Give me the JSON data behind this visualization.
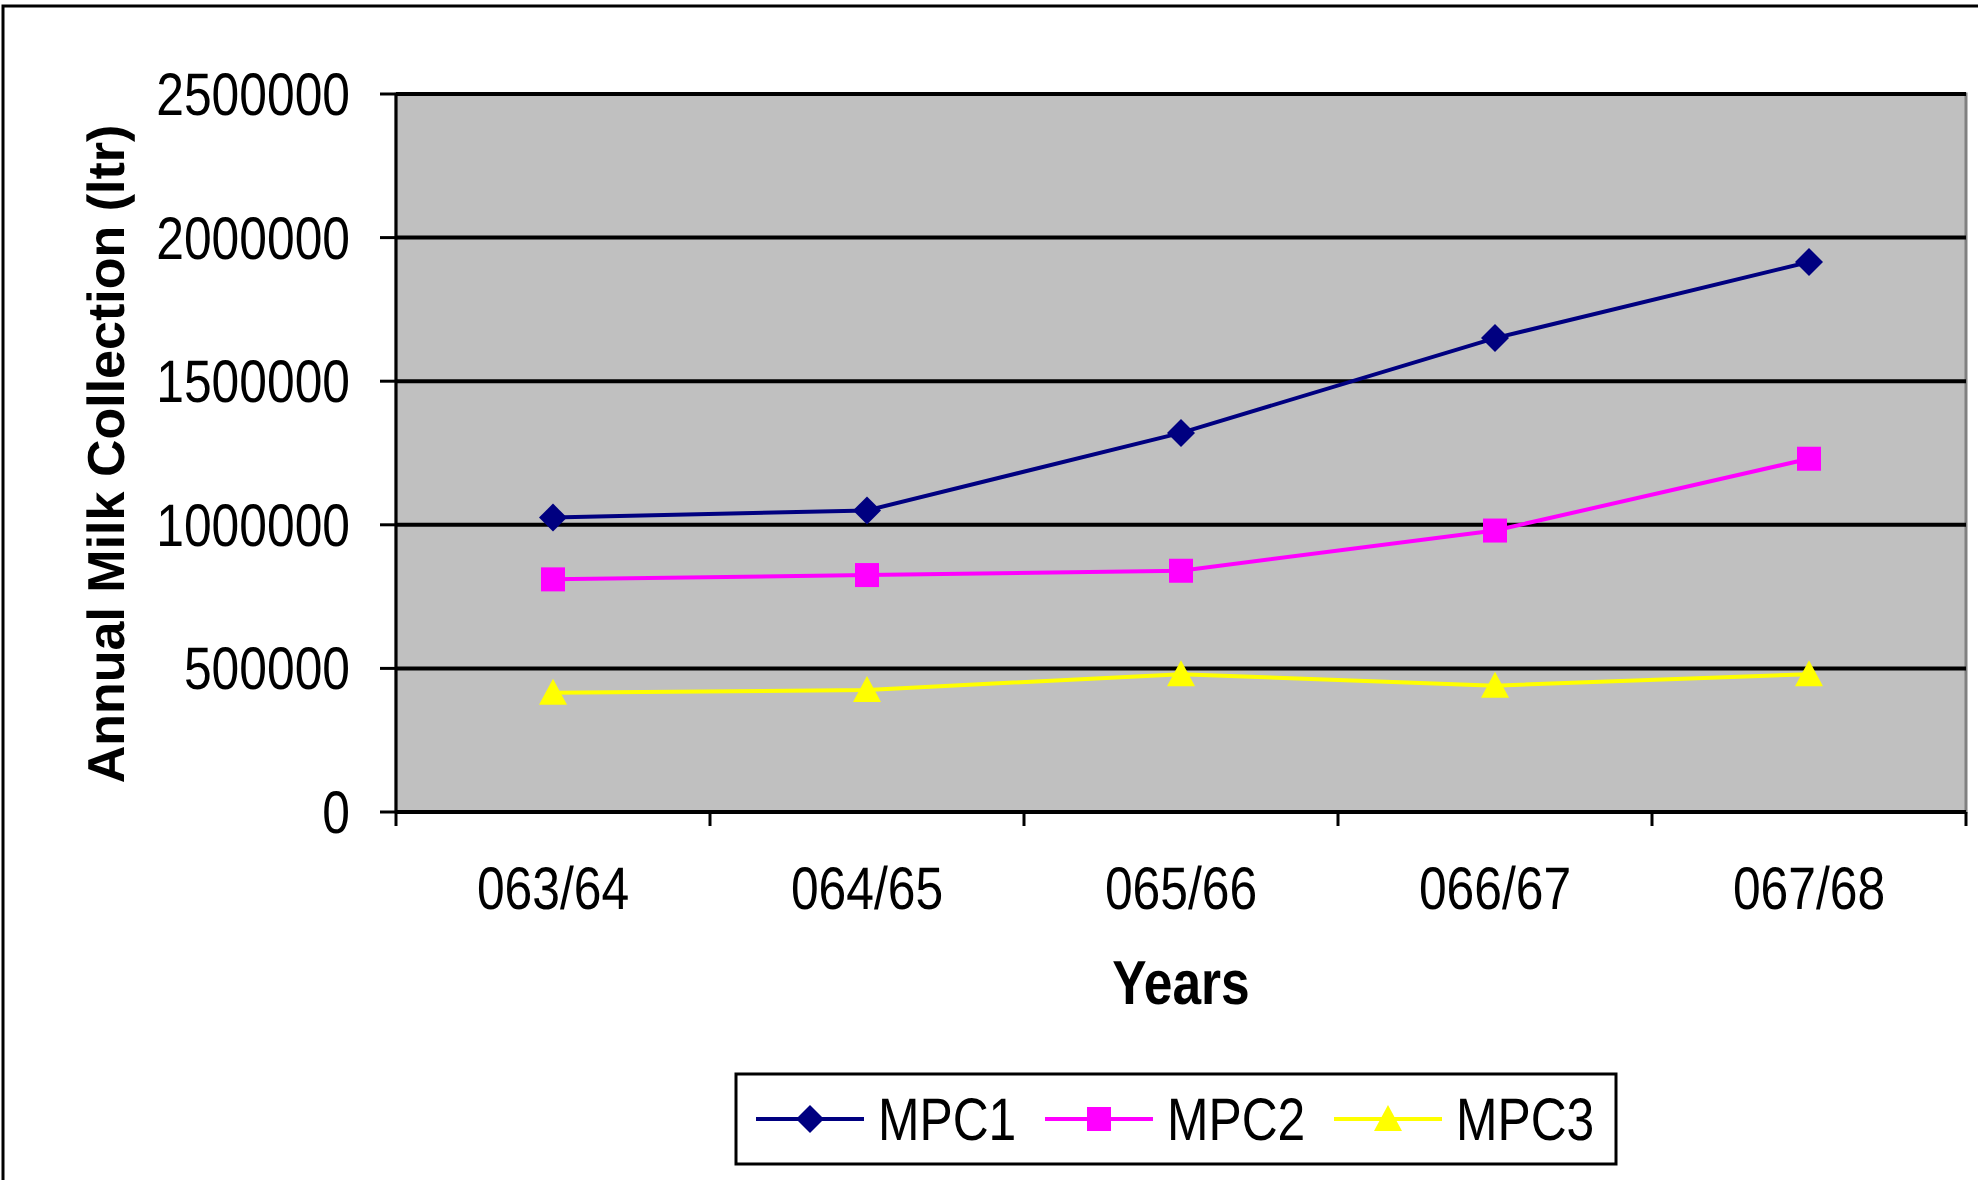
{
  "chart_data": {
    "type": "line",
    "xlabel": "Years",
    "ylabel": "Annual Milk Collection (ltr)",
    "categories": [
      "063/64",
      "064/65",
      "065/66",
      "066/67",
      "067/68"
    ],
    "series": [
      {
        "name": "MPC1",
        "color": "#000080",
        "marker": "diamond",
        "values": [
          1025000,
          1050000,
          1320000,
          1650000,
          1915000
        ]
      },
      {
        "name": "MPC2",
        "color": "#ff00ff",
        "marker": "square",
        "values": [
          810000,
          825000,
          840000,
          980000,
          1230000
        ]
      },
      {
        "name": "MPC3",
        "color": "#ffff00",
        "marker": "triangle",
        "values": [
          415000,
          425000,
          480000,
          440000,
          480000
        ]
      }
    ],
    "ylim": [
      0,
      2500000
    ],
    "yticks": [
      0,
      500000,
      1000000,
      1500000,
      2000000,
      2500000
    ],
    "grid": "y",
    "legend": "bottom"
  }
}
